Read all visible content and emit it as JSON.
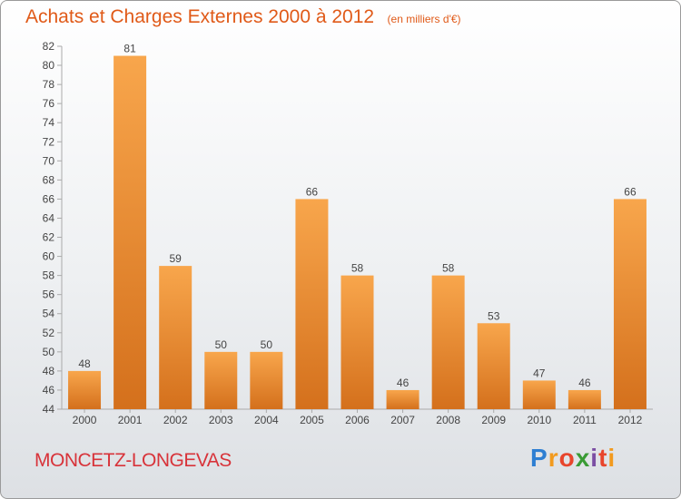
{
  "title": "Achats et Charges Externes 2000 à 2012",
  "subtitle": "(en milliers d'€)",
  "commune": "MONCETZ-LONGEVAS",
  "brand": {
    "letters": [
      "P",
      "r",
      "o",
      "x",
      "i",
      "t",
      "i"
    ],
    "colors": [
      "#2e7fd2",
      "#f29a1e",
      "#e8452c",
      "#3a9b35",
      "#7b4ea3",
      "#e8452c",
      "#f29a1e"
    ]
  },
  "colors": {
    "bar_light": "#f8a64c",
    "bar_dark": "#d4701c",
    "title": "#e05a18"
  },
  "chart_data": {
    "type": "bar",
    "title": "Achats et Charges Externes 2000 à 2012",
    "xlabel": "",
    "ylabel": "",
    "ylim": [
      44,
      82
    ],
    "yticks": [
      44,
      46,
      48,
      50,
      52,
      54,
      56,
      58,
      60,
      62,
      64,
      66,
      68,
      70,
      72,
      74,
      76,
      78,
      80,
      82
    ],
    "categories": [
      "2000",
      "2001",
      "2002",
      "2003",
      "2004",
      "2005",
      "2006",
      "2007",
      "2008",
      "2009",
      "2010",
      "2011",
      "2012"
    ],
    "values": [
      48,
      81,
      59,
      50,
      50,
      66,
      58,
      46,
      58,
      53,
      47,
      46,
      66
    ],
    "grid": false,
    "legend": "none"
  }
}
